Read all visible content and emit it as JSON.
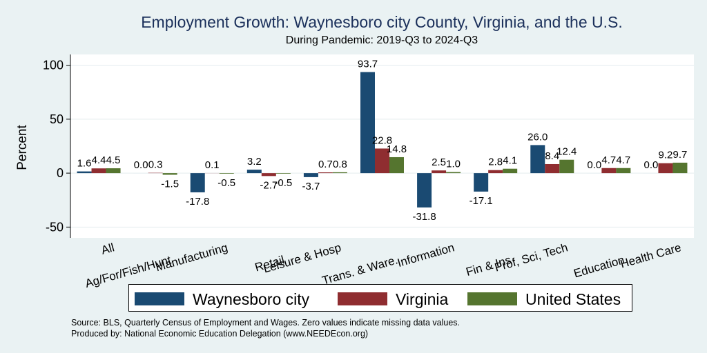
{
  "title": "Employment Growth: Waynesboro city County, Virginia, and the U.S.",
  "subtitle": "During Pandemic: 2019-Q3 to 2024-Q3",
  "notes": [
    "Source: BLS, Quarterly Census of Employment and Wages. Zero values indicate missing data values.",
    "Produced by: National Economic Education Delegation (www.NEEDEcon.org)"
  ],
  "colors": {
    "Waynesboro city": "#1a4a72",
    "Virginia": "#8f2d30",
    "United States": "#55752f"
  },
  "chart_data": {
    "type": "bar",
    "title": "Employment Growth: Waynesboro city County, Virginia, and the U.S.",
    "subtitle": "During Pandemic: 2019-Q3 to 2024-Q3",
    "xlabel": "",
    "ylabel": "Percent",
    "ylim": [
      -60,
      110
    ],
    "yticks": [
      -50,
      0,
      50,
      100
    ],
    "grid": true,
    "legend_position": "bottom",
    "categories": [
      "All",
      "Ag/For/Fish/Hunt",
      "Manufacturing",
      "Retail",
      "Leisure & Hosp",
      "Trans. & Ware.",
      "Information",
      "Fin & Ins",
      "Prof, Sci, Tech",
      "Education",
      "Health Care"
    ],
    "series": [
      {
        "name": "Waynesboro city",
        "values": [
          1.6,
          0.0,
          -17.8,
          3.2,
          -3.7,
          93.7,
          -31.8,
          -17.1,
          26.0,
          0.0,
          0.0
        ]
      },
      {
        "name": "Virginia",
        "values": [
          4.4,
          0.3,
          0.1,
          -2.7,
          0.7,
          22.8,
          2.5,
          2.8,
          8.4,
          4.7,
          9.2
        ]
      },
      {
        "name": "United States",
        "values": [
          4.5,
          -1.5,
          -0.5,
          -0.5,
          0.8,
          14.8,
          1.0,
          4.1,
          12.4,
          4.7,
          9.7
        ]
      }
    ]
  }
}
